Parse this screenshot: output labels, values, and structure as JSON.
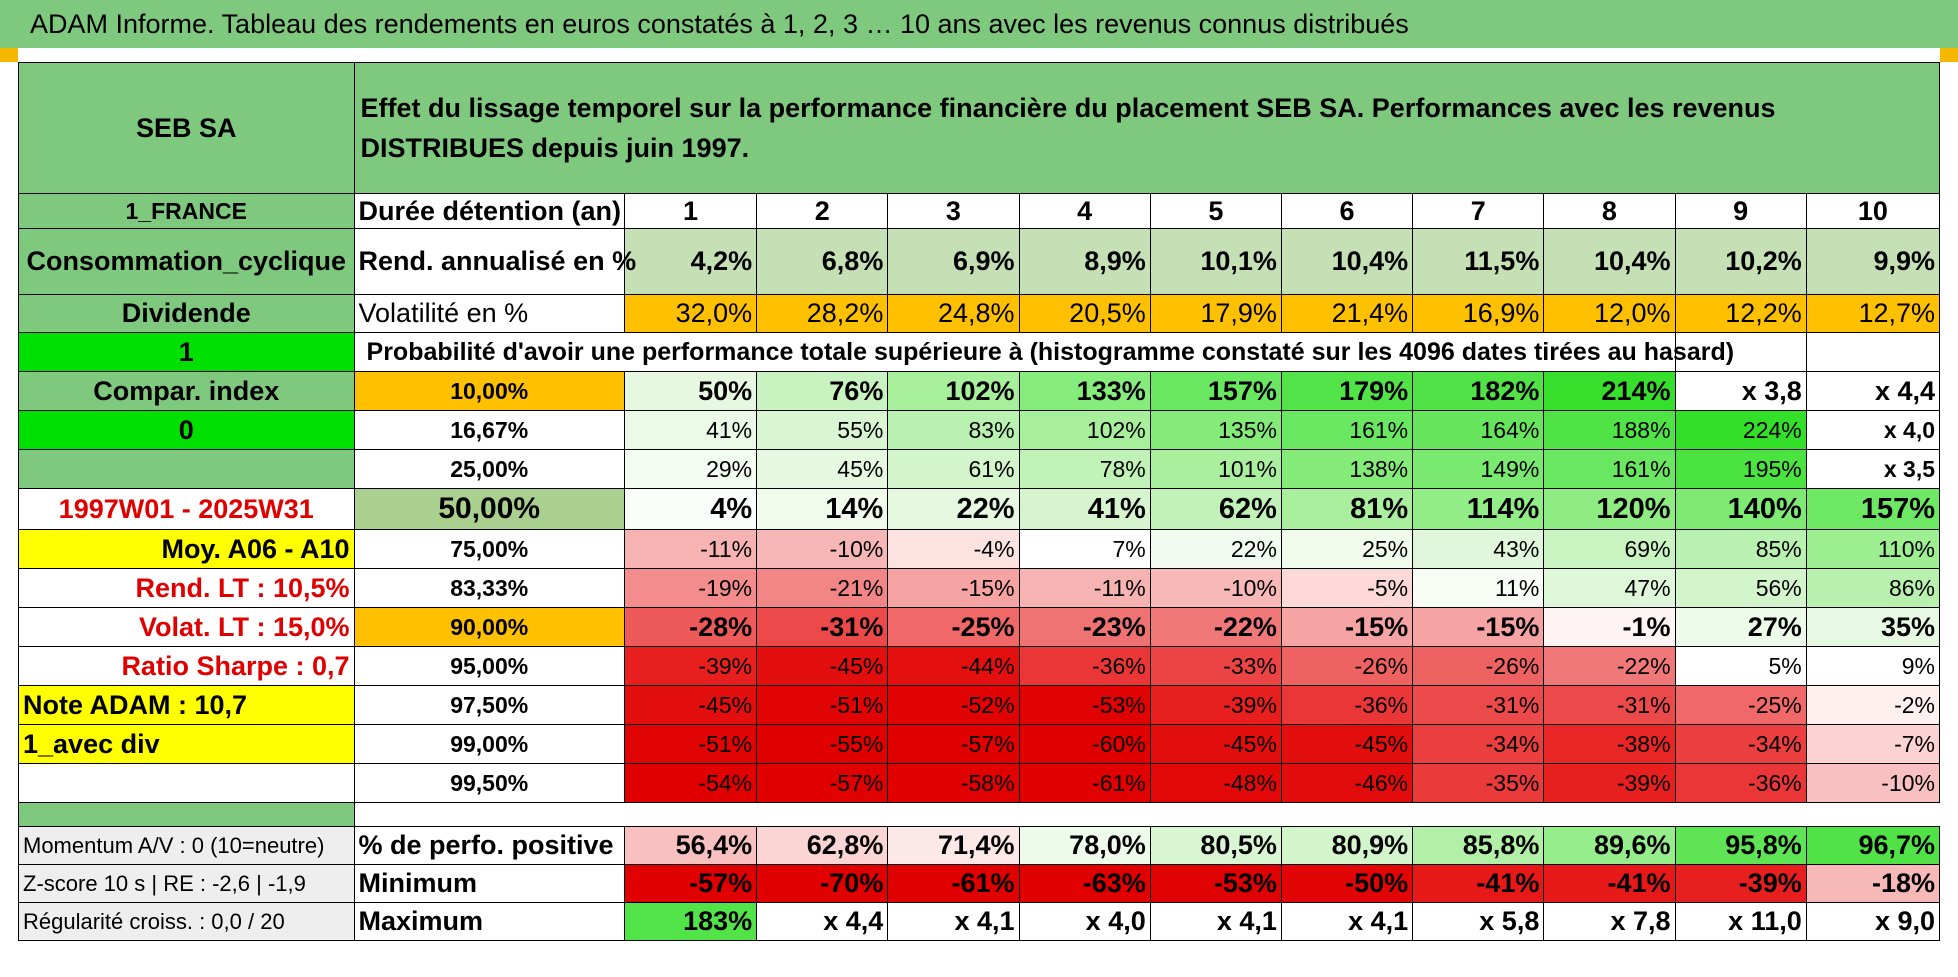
{
  "title": "ADAM Informe. Tableau des rendements en euros constatés à 1, 2, 3 … 10 ans avec les revenus connus distribués",
  "header": {
    "company": "SEB SA",
    "description": "Effet du lissage temporel sur la performance financière du placement SEB SA. Performances avec les revenus DISTRIBUES depuis juin 1997."
  },
  "left": {
    "country": "1_FRANCE",
    "sector": "Consommation_cyclique",
    "type": "Dividende",
    "flag1": "1",
    "compar_label": "Compar. index",
    "flag2": "0",
    "blank": "",
    "period": "1997W01 - 2025W31",
    "moy": "Moy. A06 - A10",
    "rend_lt": "Rend. LT :    10,5%",
    "volat_lt": "Volat. LT :    15,0%",
    "sharpe": "Ratio Sharpe :     0,7",
    "note": "Note ADAM : 10,7",
    "avec_div": "1_avec div",
    "blank2": "",
    "momentum": "Momentum A/V : 0 (10=neutre)",
    "zscore": "Z-score 10 s | RE : -2,6 | -1,9",
    "regularite": "Régularité croiss. : 0,0 / 20"
  },
  "durations": {
    "label": "Durée détention (an)",
    "years": [
      "1",
      "2",
      "3",
      "4",
      "5",
      "6",
      "7",
      "8",
      "9",
      "10"
    ]
  },
  "rend": {
    "label": "Rend. annualisé en %",
    "values": [
      "4,2%",
      "6,8%",
      "6,9%",
      "8,9%",
      "10,1%",
      "10,4%",
      "11,5%",
      "10,4%",
      "10,2%",
      "9,9%"
    ]
  },
  "volat": {
    "label": "Volatilité en %",
    "values": [
      "32,0%",
      "28,2%",
      "24,8%",
      "20,5%",
      "17,9%",
      "21,4%",
      "16,9%",
      "12,0%",
      "12,2%",
      "12,7%"
    ]
  },
  "prob_title": "Probabilité d'avoir une performance totale supérieure à (histogramme constaté sur les 4096 dates tirées au hasard)",
  "prob_rows": [
    {
      "pct": "10,00%",
      "values": [
        "50%",
        "76%",
        "102%",
        "133%",
        "157%",
        "179%",
        "182%",
        "214%",
        "x 3,8",
        "x 4,4"
      ],
      "colors": [
        "#e6f8e0",
        "#c8f3c0",
        "#a8ef9c",
        "#86ec7c",
        "#6ae760",
        "#52e348",
        "#50e246",
        "#36df2c",
        "#ffffff",
        "#ffffff"
      ]
    },
    {
      "pct": "16,67%",
      "values": [
        "41%",
        "55%",
        "83%",
        "102%",
        "135%",
        "161%",
        "164%",
        "188%",
        "224%",
        "x 4,0"
      ],
      "colors": [
        "#ebf9e6",
        "#d8f6d2",
        "#b9f1b0",
        "#a8ef9c",
        "#84eb79",
        "#6ae760",
        "#67e65d",
        "#4fe345",
        "#34df2a",
        "#ffffff"
      ]
    },
    {
      "pct": "25,00%",
      "values": [
        "29%",
        "45%",
        "61%",
        "78%",
        "101%",
        "138%",
        "149%",
        "161%",
        "195%",
        "x 3,5"
      ],
      "colors": [
        "#f3fcf0",
        "#e6f8e0",
        "#d3f5cc",
        "#c0f2b7",
        "#a9ef9e",
        "#84eb79",
        "#79e96f",
        "#6ae760",
        "#4ae340",
        "#ffffff"
      ]
    },
    {
      "pct": "50,00%",
      "values": [
        "4%",
        "14%",
        "22%",
        "41%",
        "62%",
        "81%",
        "114%",
        "120%",
        "140%",
        "157%"
      ],
      "colors": [
        "#fafefa",
        "#f0fbec",
        "#e6f8e0",
        "#d6f5cf",
        "#c2f2b9",
        "#a9ef9e",
        "#93ed87",
        "#8fec83",
        "#7eea74",
        "#6ee764"
      ],
      "bold": true
    },
    {
      "pct": "75,00%",
      "values": [
        "-11%",
        "-10%",
        "-4%",
        "7%",
        "22%",
        "25%",
        "43%",
        "69%",
        "85%",
        "110%"
      ],
      "colors": [
        "#f7b2b2",
        "#f7b6b6",
        "#fde2e2",
        "#ffffff",
        "#f2fbef",
        "#f0fbec",
        "#e1f7db",
        "#c9f3c1",
        "#b9f1b0",
        "#9def92"
      ]
    },
    {
      "pct": "83,33%",
      "values": [
        "-19%",
        "-21%",
        "-15%",
        "-11%",
        "-10%",
        "-5%",
        "11%",
        "47%",
        "56%",
        "86%"
      ],
      "colors": [
        "#f38d8d",
        "#f28585",
        "#f5a3a3",
        "#f7b2b2",
        "#f8b8b8",
        "#fcd8d8",
        "#f7fdf5",
        "#dff7d9",
        "#d3f5cc",
        "#b8f0ae"
      ]
    },
    {
      "pct": "90,00%",
      "values": [
        "-28%",
        "-31%",
        "-25%",
        "-23%",
        "-22%",
        "-15%",
        "-15%",
        "-1%",
        "27%",
        "35%"
      ],
      "colors": [
        "#ee5a5a",
        "#ec4a4a",
        "#f06868",
        "#f07373",
        "#f17878",
        "#f5a3a3",
        "#f5a3a3",
        "#fff4f4",
        "#eefaea",
        "#e8f9e3"
      ],
      "bold": true
    },
    {
      "pct": "95,00%",
      "values": [
        "-39%",
        "-45%",
        "-44%",
        "-36%",
        "-33%",
        "-26%",
        "-26%",
        "-22%",
        "5%",
        "9%"
      ],
      "colors": [
        "#e81f1f",
        "#e30e0e",
        "#e41010",
        "#ea3636",
        "#ec4444",
        "#ef6262",
        "#ef6262",
        "#f17878",
        "#ffffff",
        "#ffffff"
      ]
    },
    {
      "pct": "97,50%",
      "values": [
        "-45%",
        "-51%",
        "-52%",
        "-53%",
        "-39%",
        "-36%",
        "-31%",
        "-31%",
        "-25%",
        "-2%"
      ],
      "colors": [
        "#e30e0e",
        "#e10404",
        "#e10303",
        "#e00202",
        "#e81f1f",
        "#ea3636",
        "#ec4a4a",
        "#ec4a4a",
        "#f06868",
        "#fff0f0"
      ]
    },
    {
      "pct": "99,00%",
      "values": [
        "-51%",
        "-55%",
        "-57%",
        "-60%",
        "-45%",
        "-45%",
        "-34%",
        "-38%",
        "-34%",
        "-7%"
      ],
      "colors": [
        "#e10404",
        "#e00000",
        "#e00000",
        "#e00000",
        "#e30e0e",
        "#e30e0e",
        "#eb3e3e",
        "#e92626",
        "#eb3e3e",
        "#fcd2d2"
      ]
    },
    {
      "pct": "99,50%",
      "values": [
        "-54%",
        "-57%",
        "-58%",
        "-61%",
        "-48%",
        "-46%",
        "-35%",
        "-39%",
        "-36%",
        "-10%"
      ],
      "colors": [
        "#e00000",
        "#e00000",
        "#e00000",
        "#e00000",
        "#e20808",
        "#e30c0c",
        "#eb3a3a",
        "#e81f1f",
        "#ea3636",
        "#f8c0c0"
      ]
    }
  ],
  "summary": [
    {
      "label": "% de perfo. positive",
      "values": [
        "56,4%",
        "62,8%",
        "71,4%",
        "78,0%",
        "80,5%",
        "80,9%",
        "85,8%",
        "89,6%",
        "95,8%",
        "96,7%"
      ],
      "colors": [
        "#f9c0c0",
        "#fbd4d4",
        "#fde8e8",
        "#eefaea",
        "#d8f6d2",
        "#d3f5cc",
        "#b1f0a6",
        "#96ed8b",
        "#5ee455",
        "#50e246"
      ]
    },
    {
      "label": "Minimum",
      "values": [
        "-57%",
        "-70%",
        "-61%",
        "-63%",
        "-53%",
        "-50%",
        "-41%",
        "-41%",
        "-39%",
        "-18%"
      ],
      "colors": [
        "#e00000",
        "#e00000",
        "#e00000",
        "#e00000",
        "#e00202",
        "#e10505",
        "#e61818",
        "#e61818",
        "#e81f1f",
        "#f7b8b8"
      ]
    },
    {
      "label": "Maximum",
      "values": [
        "183%",
        "x 4,4",
        "x 4,1",
        "x 4,0",
        "x 4,1",
        "x 4,1",
        "x 5,8",
        "x 7,8",
        "x 11,0",
        "x 9,0"
      ],
      "colors": [
        "#52e348",
        "#ffffff",
        "#ffffff",
        "#ffffff",
        "#ffffff",
        "#ffffff",
        "#ffffff",
        "#ffffff",
        "#ffffff",
        "#ffffff"
      ]
    }
  ],
  "colors": {
    "header_green": "#7fc97f",
    "rend_green": "#c5e0b4",
    "volat_orange": "#ffc000",
    "yellow": "#ffff00",
    "bright_green": "#00e000",
    "label_red": "#e00000",
    "summary_grey": "#eeeeee"
  }
}
